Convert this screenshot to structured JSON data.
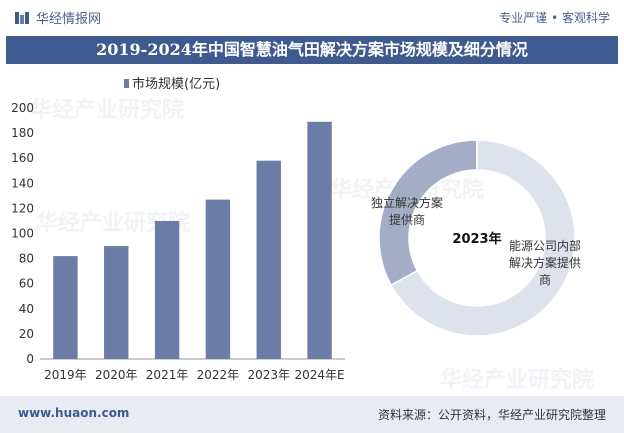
{
  "header": {
    "brand": "华经情报网",
    "slogan": "专业严谨 • 客观科学"
  },
  "title": "2019-2024年中国智慧油气田解决方案市场规模及细分情况",
  "footer": {
    "url": "www.huaon.com",
    "source": "资料来源：公开资料，华经产业研究院整理"
  },
  "watermark": "华经产业研究院",
  "colors": {
    "title_band": "#3f5a8f",
    "bar": "#6b7ca6",
    "donut_dark": "#a3aec6",
    "donut_light": "#dde2ec"
  },
  "chart_data": [
    {
      "type": "bar",
      "legend": "市场规模(亿元)",
      "categories": [
        "2019年",
        "2020年",
        "2021年",
        "2022年",
        "2023年",
        "2024年E"
      ],
      "values": [
        82,
        90,
        110,
        127,
        158,
        189
      ],
      "ylim": [
        0,
        200
      ],
      "yticks": [
        0,
        20,
        40,
        60,
        80,
        100,
        120,
        140,
        160,
        180,
        200
      ]
    },
    {
      "type": "pie",
      "center_label": "2023年",
      "slices": [
        {
          "label": "独立解决方案提供商",
          "label_lines": [
            "独立解决方案",
            "提供商"
          ],
          "value": 33
        },
        {
          "label": "能源公司内部解决方案提供商",
          "label_lines": [
            "能源公司内部",
            "解决方案提供",
            "商"
          ],
          "value": 67
        }
      ]
    }
  ]
}
